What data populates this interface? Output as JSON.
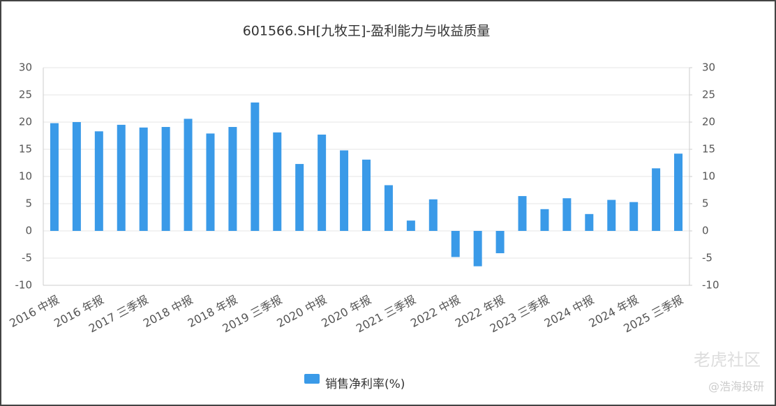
{
  "chart_data": {
    "type": "bar",
    "title": "601566.SH[九牧王]-盈利能力与收益质量",
    "categories": [
      "2016 中报",
      null,
      "2016 年报",
      null,
      "2017 三季报",
      null,
      "2018 中报",
      null,
      "2018 年报",
      null,
      "2019 三季报",
      null,
      "2020 中报",
      null,
      "2020 年报",
      null,
      "2021 三季报",
      null,
      "2022 中报",
      null,
      "2022 年报",
      null,
      "2023 三季报",
      null,
      "2024 中报",
      null,
      "2024 年报",
      null,
      "2025 三季报"
    ],
    "series": [
      {
        "name": "销售净利率(%)",
        "color": "#3a9ae8",
        "values": [
          19.8,
          20.0,
          18.3,
          19.5,
          19.0,
          19.1,
          20.6,
          17.9,
          19.1,
          23.6,
          18.1,
          12.3,
          17.7,
          14.8,
          13.1,
          8.4,
          1.9,
          5.8,
          -4.8,
          -6.5,
          -4.1,
          6.4,
          4.0,
          6.0,
          3.1,
          5.7,
          5.3,
          11.5,
          14.2
        ]
      }
    ],
    "ylim": [
      -10,
      30
    ],
    "yticks": [
      -10,
      -5,
      0,
      5,
      10,
      15,
      20,
      25,
      30
    ],
    "y2lim": [
      -10,
      30
    ],
    "y2ticks": [
      -10,
      -5,
      0,
      5,
      10,
      15,
      20,
      25,
      30
    ],
    "grid": true,
    "legend": "bottom"
  },
  "watermark": [
    "老虎社区",
    "@浩海投研"
  ]
}
